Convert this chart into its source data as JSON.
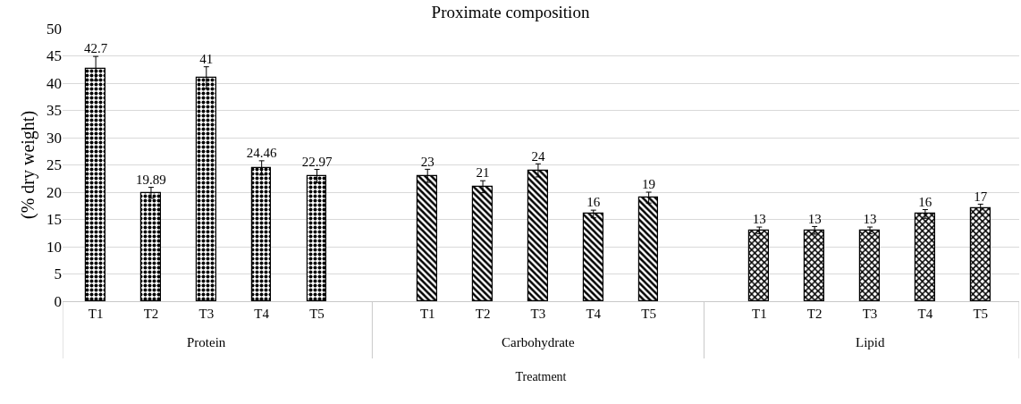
{
  "chart_data": {
    "type": "bar",
    "title": "Proximate composition",
    "xlabel": "Treatment",
    "ylabel": "(% dry weight)",
    "categories": [
      "T1",
      "T2",
      "T3",
      "T4",
      "T5",
      null,
      "T1",
      "T2",
      "T3",
      "T4",
      "T5",
      null,
      "T1",
      "T2",
      "T3",
      "T4",
      "T5"
    ],
    "series": [
      {
        "name": "Protein",
        "color": "#000000",
        "values": [
          42.7,
          19.89,
          41,
          24.46,
          22.97,
          null,
          null,
          null,
          null,
          null,
          null,
          null,
          null,
          null,
          null,
          null,
          null
        ],
        "errors": [
          2.2,
          1,
          2,
          1.3,
          1.2,
          null,
          null,
          null,
          null,
          null,
          null,
          null,
          null,
          null,
          null,
          null,
          null
        ]
      },
      {
        "name": "Carbohydrate",
        "color": "#000000",
        "values": [
          null,
          null,
          null,
          null,
          null,
          null,
          23,
          21,
          24,
          16,
          19,
          null,
          null,
          null,
          null,
          null,
          null
        ],
        "errors": [
          null,
          null,
          null,
          null,
          null,
          null,
          1.2,
          1.1,
          1.2,
          0.7,
          1,
          null,
          null,
          null,
          null,
          null,
          null
        ]
      },
      {
        "name": "Lipid",
        "color": "#000000",
        "values": [
          null,
          null,
          null,
          null,
          null,
          null,
          null,
          null,
          null,
          null,
          null,
          null,
          13,
          13,
          13,
          16,
          17
        ],
        "errors": [
          null,
          null,
          null,
          null,
          null,
          null,
          null,
          null,
          null,
          null,
          null,
          null,
          0.6,
          0.7,
          0.6,
          0.8,
          0.8
        ]
      }
    ],
    "ylim": [
      0,
      50
    ],
    "yticks": [
      0,
      5,
      10,
      15,
      20,
      25,
      30,
      35,
      40,
      45,
      50
    ],
    "grid": "y",
    "legend": false,
    "data_labels": true
  }
}
